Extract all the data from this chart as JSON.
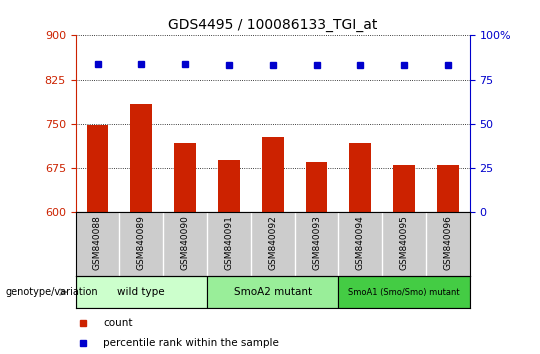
{
  "title": "GDS4495 / 100086133_TGI_at",
  "samples": [
    "GSM840088",
    "GSM840089",
    "GSM840090",
    "GSM840091",
    "GSM840092",
    "GSM840093",
    "GSM840094",
    "GSM840095",
    "GSM840096"
  ],
  "bar_values": [
    748,
    783,
    718,
    688,
    728,
    685,
    718,
    680,
    680
  ],
  "percentile_values": [
    84,
    84,
    84,
    83,
    83,
    83,
    83,
    83,
    83
  ],
  "ylim_left": [
    600,
    900
  ],
  "ylim_right": [
    0,
    100
  ],
  "yticks_left": [
    600,
    675,
    750,
    825,
    900
  ],
  "yticks_right": [
    0,
    25,
    50,
    75,
    100
  ],
  "groups": [
    {
      "label": "wild type",
      "start": 0,
      "end": 3,
      "color": "#ccffcc"
    },
    {
      "label": "SmoA2 mutant",
      "start": 3,
      "end": 6,
      "color": "#99ee99"
    },
    {
      "label": "SmoA1 (Smo/Smo) mutant",
      "start": 6,
      "end": 9,
      "color": "#44cc44"
    }
  ],
  "bar_color": "#cc2200",
  "dot_color": "#0000cc",
  "left_tick_color": "#cc2200",
  "right_tick_color": "#0000cc",
  "background_color": "#ffffff",
  "plot_bg_color": "#ffffff",
  "grid_color": "#000000",
  "sample_bg_color": "#cccccc",
  "genotype_label": "genotype/variation",
  "arrow_color": "#888888"
}
